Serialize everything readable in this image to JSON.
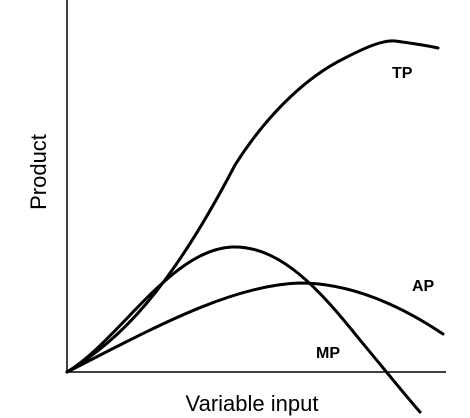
{
  "y_axis": {
    "label": "Product"
  },
  "x_axis": {
    "label": "Variable input"
  },
  "curves": [
    {
      "label": "TP"
    },
    {
      "label": "AP"
    },
    {
      "label": "MP"
    }
  ]
}
